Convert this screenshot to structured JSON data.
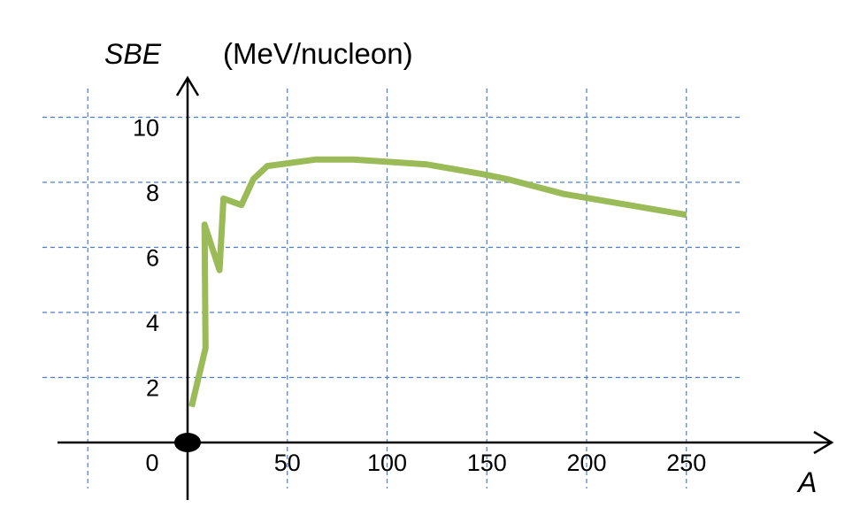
{
  "chart_data": {
    "type": "line",
    "ylabel": "SBE",
    "yunit": "(MeV/nucleon)",
    "xlabel": "A",
    "xlim": [
      0,
      280
    ],
    "ylim": [
      0,
      10.5
    ],
    "x_ticks": [
      "0",
      "50",
      "100",
      "150",
      "200",
      "250"
    ],
    "y_ticks": [
      "2",
      "4",
      "6",
      "8",
      "10"
    ],
    "grid": true,
    "origin_marker": true,
    "series": [
      {
        "color": "#9bbb59",
        "points": [
          [
            2,
            1.1
          ],
          [
            9,
            2.9
          ],
          [
            8.5,
            6.7
          ],
          [
            16,
            5.3
          ],
          [
            18,
            7.5
          ],
          [
            27,
            7.3
          ],
          [
            33,
            8.1
          ],
          [
            40,
            8.5
          ],
          [
            64,
            8.7
          ],
          [
            83,
            8.7
          ],
          [
            120,
            8.55
          ],
          [
            148,
            8.25
          ],
          [
            160,
            8.1
          ],
          [
            188,
            7.65
          ],
          [
            250,
            7.0
          ]
        ]
      }
    ]
  }
}
